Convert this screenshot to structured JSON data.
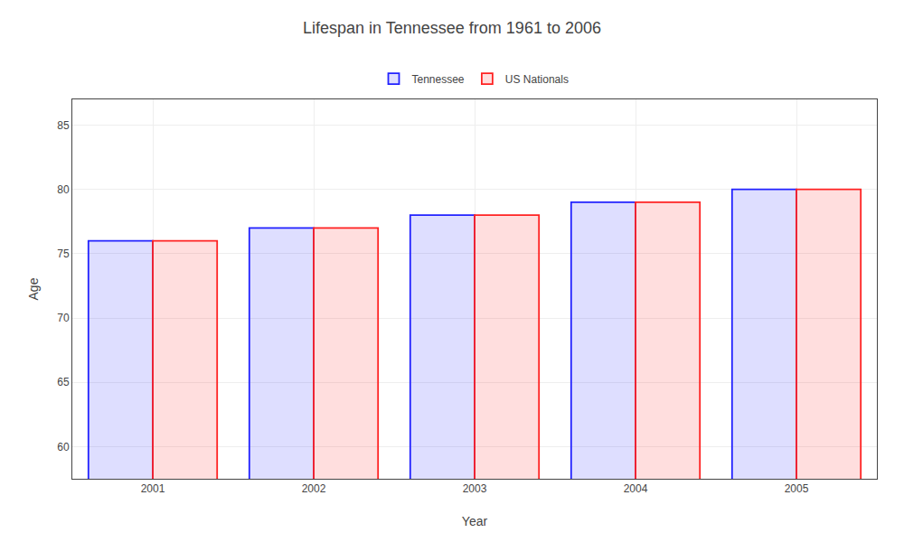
{
  "chart_data": {
    "type": "bar",
    "title": "Lifespan in Tennessee from 1961 to 2006",
    "xlabel": "Year",
    "ylabel": "Age",
    "categories": [
      "2001",
      "2002",
      "2003",
      "2004",
      "2005"
    ],
    "series": [
      {
        "name": "Tennessee",
        "color": "#2222ff",
        "values": [
          76,
          77,
          78,
          79,
          80
        ]
      },
      {
        "name": "US Nationals",
        "color": "#ff2222",
        "values": [
          76,
          77,
          78,
          79,
          80
        ]
      }
    ],
    "ylim": [
      57.5,
      87
    ],
    "yticks": [
      60,
      65,
      70,
      75,
      80,
      85
    ],
    "grid": true,
    "legend": "top"
  }
}
